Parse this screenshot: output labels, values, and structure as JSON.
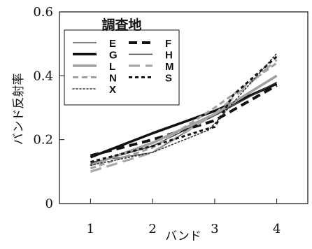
{
  "chart_data": {
    "type": "line",
    "title": "",
    "xlabel": "バンド",
    "ylabel": "バンド反射率",
    "x": [
      1,
      2,
      3,
      4
    ],
    "x_tick_labels": [
      "1",
      "2",
      "3",
      "4"
    ],
    "xlim": [
      0.5,
      4.5
    ],
    "ylim": [
      0,
      0.6
    ],
    "y_ticks": [
      0,
      0.2,
      0.4,
      0.6
    ],
    "y_tick_labels": [
      "0",
      "0.2",
      "0.4",
      "0.6"
    ],
    "grid": false,
    "legend": {
      "title": "調査地",
      "placement": "top-left",
      "columns": 2
    },
    "series": [
      {
        "name": "E",
        "color": "#555555",
        "line_style": "solid-thin",
        "values": [
          0.13,
          0.16,
          0.28,
          0.38
        ],
        "points": [
          [
            1,
            0.13
          ],
          [
            1.5,
            0.145
          ],
          [
            2,
            0.16
          ],
          [
            3,
            0.28
          ],
          [
            4,
            0.38
          ]
        ]
      },
      {
        "name": "F",
        "color": "#111111",
        "line_style": "dashed-thick",
        "values": [
          0.15,
          0.2,
          0.26,
          0.37
        ],
        "points": [
          [
            1,
            0.15
          ],
          [
            2,
            0.2
          ],
          [
            3,
            0.26
          ],
          [
            4,
            0.37
          ]
        ]
      },
      {
        "name": "G",
        "color": "#111111",
        "line_style": "solid-thick",
        "values": [
          0.145,
          0.22,
          0.29,
          0.375
        ],
        "points": [
          [
            1,
            0.145
          ],
          [
            2,
            0.22
          ],
          [
            3,
            0.29
          ],
          [
            4,
            0.375
          ]
        ]
      },
      {
        "name": "H",
        "color": "#333333",
        "line_style": "solid-thin",
        "values": [
          0.125,
          0.18,
          0.275,
          0.38
        ],
        "points": [
          [
            1,
            0.125
          ],
          [
            2,
            0.18
          ],
          [
            3,
            0.275
          ],
          [
            4,
            0.38
          ]
        ]
      },
      {
        "name": "L",
        "color": "#a0a0a0",
        "line_style": "solid-thick",
        "values": [
          0.12,
          0.19,
          0.28,
          0.4
        ],
        "points": [
          [
            1,
            0.12
          ],
          [
            2,
            0.19
          ],
          [
            3,
            0.28
          ],
          [
            4,
            0.4
          ]
        ]
      },
      {
        "name": "M",
        "color": "#a8a8a8",
        "line_style": "long-dash",
        "values": [
          0.1,
          0.16,
          0.28,
          0.45
        ],
        "points": [
          [
            1,
            0.1
          ],
          [
            2,
            0.16
          ],
          [
            3,
            0.28
          ],
          [
            4,
            0.45
          ]
        ]
      },
      {
        "name": "N",
        "color": "#a0a0a0",
        "line_style": "dashed-medium",
        "values": [
          0.11,
          0.175,
          0.3,
          0.44
        ],
        "points": [
          [
            1,
            0.11
          ],
          [
            2,
            0.175
          ],
          [
            3,
            0.3
          ],
          [
            4,
            0.44
          ]
        ]
      },
      {
        "name": "S",
        "color": "#111111",
        "line_style": "dashed-short",
        "values": [
          0.13,
          0.18,
          0.24,
          0.46
        ],
        "points": [
          [
            1,
            0.13
          ],
          [
            2,
            0.18
          ],
          [
            2.9,
            0.235
          ],
          [
            3,
            0.24
          ],
          [
            3.3,
            0.34
          ],
          [
            4,
            0.46
          ]
        ]
      },
      {
        "name": "X",
        "color": "#333333",
        "line_style": "dotted",
        "values": [
          0.12,
          0.16,
          0.25,
          0.47
        ],
        "points": [
          [
            1,
            0.12
          ],
          [
            2,
            0.16
          ],
          [
            2.9,
            0.23
          ],
          [
            3,
            0.25
          ],
          [
            4,
            0.47
          ]
        ]
      }
    ]
  }
}
